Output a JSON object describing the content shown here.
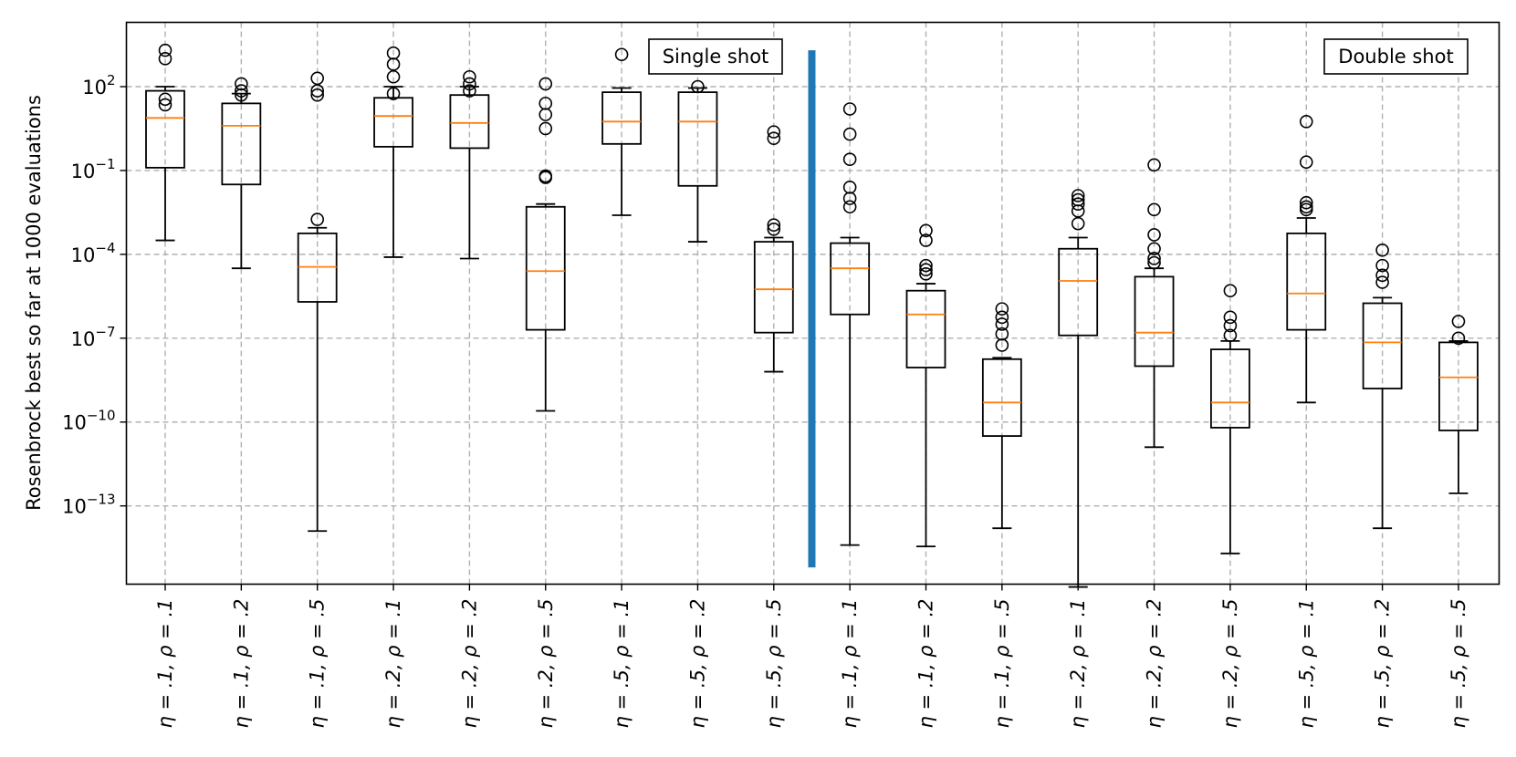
{
  "chart_data": {
    "type": "boxplot",
    "ylabel": "Rosenbrock best so far at 1000 evaluations",
    "yscale": "log",
    "ylim_log10": [
      -15.8,
      4.3
    ],
    "yticks": [
      {
        "exp": 2,
        "base": "10",
        "sup": "2"
      },
      {
        "exp": -1,
        "base": "10",
        "sup": "−1"
      },
      {
        "exp": -4,
        "base": "10",
        "sup": "−4"
      },
      {
        "exp": -7,
        "base": "10",
        "sup": "−7"
      },
      {
        "exp": -10,
        "base": "10",
        "sup": "−10"
      },
      {
        "exp": -13,
        "base": "10",
        "sup": "−13"
      }
    ],
    "grid": true,
    "separator_color": "#1f77b4",
    "separator_ylim_log10": [
      -15.2,
      3.3
    ],
    "box_color": "#000000",
    "median_color": "#ff7f0e",
    "annotations": [
      "Single shot",
      "Double shot"
    ],
    "categories": [
      "η = .1, ρ = .1",
      "η = .1, ρ = .2",
      "η = .1, ρ = .5",
      "η = .2, ρ = .1",
      "η = .2, ρ = .2",
      "η = .2, ρ = .5",
      "η = .5, ρ = .1",
      "η = .5, ρ = .2",
      "η = .5, ρ = .5",
      "η = .1, ρ = .1",
      "η = .1, ρ = .2",
      "η = .1, ρ = .5",
      "η = .2, ρ = .1",
      "η = .2, ρ = .2",
      "η = .2, ρ = .5",
      "η = .5, ρ = .1",
      "η = .5, ρ = .2",
      "η = .5, ρ = .5"
    ],
    "boxes_log10": [
      {
        "group": "Single shot",
        "wlo": -3.5,
        "q1": -0.9,
        "med": 0.88,
        "q3": 1.85,
        "whi": 2.0,
        "fliers": [
          3.3,
          3.0,
          1.55,
          1.35
        ]
      },
      {
        "group": "Single shot",
        "wlo": -4.5,
        "q1": -1.5,
        "med": 0.6,
        "q3": 1.4,
        "whi": 1.75,
        "fliers": [
          2.1,
          1.85,
          1.7
        ]
      },
      {
        "group": "Single shot",
        "wlo": -13.9,
        "q1": -5.7,
        "med": -4.45,
        "q3": -3.25,
        "whi": -3.05,
        "fliers": [
          -2.75,
          1.85,
          1.7,
          2.3
        ]
      },
      {
        "group": "Single shot",
        "wlo": -4.1,
        "q1": -0.15,
        "med": 0.95,
        "q3": 1.6,
        "whi": 2.0,
        "fliers": [
          1.75,
          2.8,
          2.35,
          3.2
        ]
      },
      {
        "group": "Single shot",
        "wlo": -4.15,
        "q1": -0.2,
        "med": 0.7,
        "q3": 1.7,
        "whi": 2.0,
        "fliers": [
          1.85,
          2.1,
          2.35
        ]
      },
      {
        "group": "Single shot",
        "wlo": -9.6,
        "q1": -6.7,
        "med": -4.6,
        "q3": -2.3,
        "whi": -2.2,
        "fliers": [
          -1.2,
          -1.25,
          0.5,
          1.0,
          1.4,
          2.1
        ]
      },
      {
        "group": "Single shot",
        "wlo": -2.6,
        "q1": -0.05,
        "med": 0.75,
        "q3": 1.8,
        "whi": 1.95,
        "fliers": [
          3.15
        ]
      },
      {
        "group": "Single shot",
        "wlo": -3.55,
        "q1": -1.55,
        "med": 0.75,
        "q3": 1.8,
        "whi": 1.95,
        "fliers": [
          2.0
        ]
      },
      {
        "group": "Single shot",
        "wlo": -8.2,
        "q1": -6.8,
        "med": -5.25,
        "q3": -3.55,
        "whi": -3.4,
        "fliers": [
          -2.95,
          -3.1,
          0.15,
          0.38
        ]
      },
      {
        "group": "Double shot",
        "wlo": -14.4,
        "q1": -6.15,
        "med": -4.5,
        "q3": -3.6,
        "whi": -3.4,
        "fliers": [
          -2.0,
          -2.3,
          -1.6,
          -0.6,
          0.3,
          1.2
        ]
      },
      {
        "group": "Double shot",
        "wlo": -14.45,
        "q1": -8.05,
        "med": -6.15,
        "q3": -5.3,
        "whi": -5.05,
        "fliers": [
          -4.4,
          -4.7,
          -4.55,
          -3.5,
          -3.15
        ]
      },
      {
        "group": "Double shot",
        "wlo": -13.8,
        "q1": -10.5,
        "med": -9.3,
        "q3": -7.75,
        "whi": -7.7,
        "fliers": [
          -7.25,
          -6.85,
          -6.5,
          -6.25,
          -5.95
        ]
      },
      {
        "group": "Double shot",
        "wlo": -15.9,
        "q1": -6.9,
        "med": -4.95,
        "q3": -3.8,
        "whi": -3.4,
        "fliers": [
          -2.9,
          -2.45,
          -2.2,
          -2.05,
          -1.9
        ]
      },
      {
        "group": "Double shot",
        "wlo": -10.9,
        "q1": -8.0,
        "med": -6.8,
        "q3": -4.8,
        "whi": -4.5,
        "fliers": [
          -4.3,
          -4.15,
          -3.8,
          -3.3,
          -2.4,
          -0.8
        ]
      },
      {
        "group": "Double shot",
        "wlo": -14.7,
        "q1": -10.2,
        "med": -9.3,
        "q3": -7.4,
        "whi": -7.1,
        "fliers": [
          -6.9,
          -6.55,
          -6.25,
          -5.3
        ]
      },
      {
        "group": "Double shot",
        "wlo": -9.3,
        "q1": -6.7,
        "med": -5.4,
        "q3": -3.25,
        "whi": -2.7,
        "fliers": [
          -2.4,
          -2.15,
          -2.3,
          -0.7,
          0.75
        ]
      },
      {
        "group": "Double shot",
        "wlo": -13.8,
        "q1": -8.8,
        "med": -7.15,
        "q3": -5.75,
        "whi": -5.55,
        "fliers": [
          -5.0,
          -4.75,
          -4.4,
          -3.85
        ]
      },
      {
        "group": "Double shot",
        "wlo": -12.55,
        "q1": -10.3,
        "med": -8.4,
        "q3": -7.15,
        "whi": -7.1,
        "fliers": [
          -7.0,
          -6.4
        ]
      }
    ]
  }
}
